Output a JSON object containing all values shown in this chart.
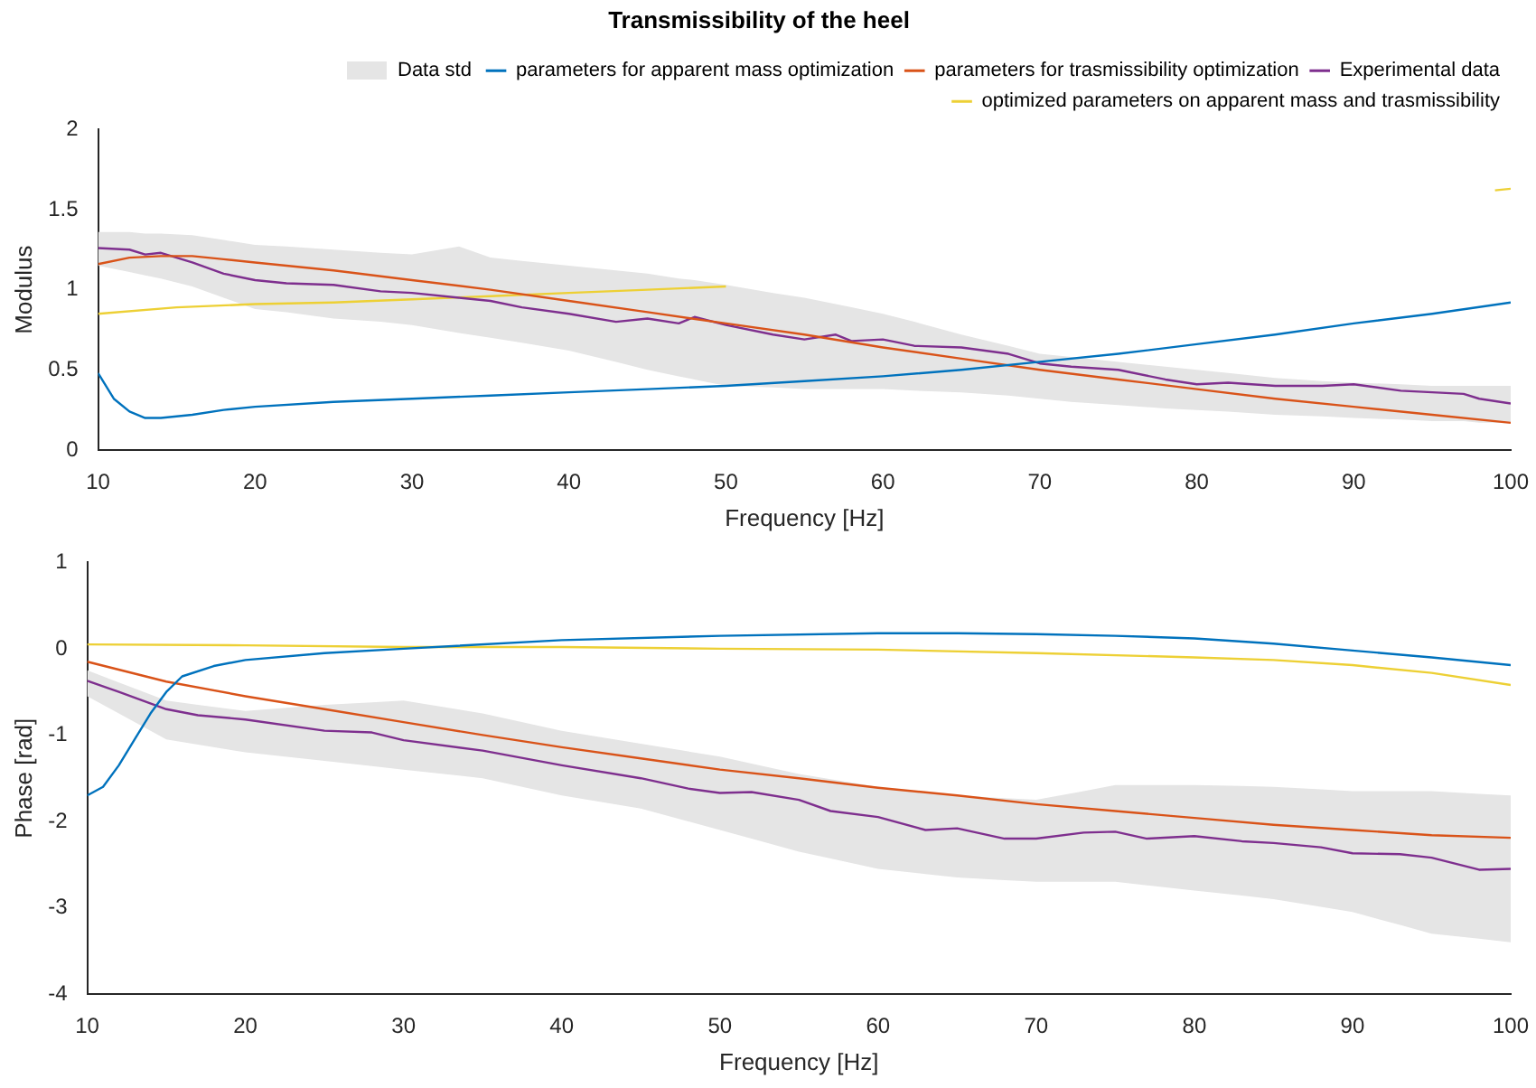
{
  "chart_data": [
    {
      "type": "line",
      "title": "Transmissibility of the heel",
      "xlabel": "Frequency [Hz]",
      "ylabel": "Modulus",
      "annotations": [
        "Data std"
      ],
      "xlim": [
        10,
        100
      ],
      "xticks": [
        10,
        20,
        30,
        40,
        50,
        60,
        70,
        80,
        90,
        100
      ],
      "ylim": [
        0,
        2
      ],
      "yticks": [
        0,
        0.5,
        1,
        1.5,
        2
      ],
      "grid": false,
      "legend": "top right",
      "marker": "none",
      "line_style": "solid",
      "series": [
        {
          "name": "parameters for apparent mass optimization",
          "color": "#0072bd",
          "x": [
            10,
            11,
            12,
            13,
            14,
            16,
            18,
            20,
            25,
            30,
            35,
            40,
            45,
            50,
            55,
            60,
            65,
            70,
            75,
            80,
            85,
            90,
            95,
            100
          ],
          "values": [
            0.48,
            0.32,
            0.24,
            0.2,
            0.2,
            0.22,
            0.25,
            0.27,
            0.3,
            0.32,
            0.34,
            0.36,
            0.38,
            0.4,
            0.43,
            0.46,
            0.5,
            0.55,
            0.6,
            0.66,
            0.72,
            0.79,
            0.85,
            0.92
          ]
        },
        {
          "name": "parameters for trasmissibility optimization",
          "color": "#d95319",
          "x": [
            10,
            12,
            14,
            16,
            18,
            20,
            25,
            30,
            35,
            40,
            45,
            50,
            55,
            60,
            65,
            70,
            75,
            80,
            85,
            90,
            95,
            100
          ],
          "values": [
            1.16,
            1.2,
            1.21,
            1.21,
            1.19,
            1.17,
            1.12,
            1.06,
            1.0,
            0.93,
            0.86,
            0.79,
            0.72,
            0.64,
            0.57,
            0.5,
            0.44,
            0.38,
            0.32,
            0.27,
            0.22,
            0.17
          ]
        },
        {
          "name": "Experimental data",
          "color": "#7e2f8e",
          "x": [
            10,
            12,
            13,
            14,
            16,
            18,
            20,
            22,
            25,
            28,
            30,
            33,
            35,
            37,
            40,
            43,
            45,
            47,
            48,
            50,
            53,
            55,
            57,
            58,
            60,
            62,
            65,
            68,
            70,
            72,
            75,
            78,
            80,
            82,
            85,
            88,
            90,
            93,
            95,
            97,
            98,
            100
          ],
          "values": [
            1.26,
            1.25,
            1.22,
            1.23,
            1.17,
            1.1,
            1.06,
            1.04,
            1.03,
            0.99,
            0.98,
            0.95,
            0.93,
            0.89,
            0.85,
            0.8,
            0.82,
            0.79,
            0.83,
            0.78,
            0.72,
            0.69,
            0.72,
            0.68,
            0.69,
            0.65,
            0.64,
            0.6,
            0.54,
            0.52,
            0.5,
            0.44,
            0.41,
            0.42,
            0.4,
            0.4,
            0.41,
            0.37,
            0.36,
            0.35,
            0.32,
            0.29
          ],
          "upper": [
            1.36,
            1.36,
            1.35,
            1.35,
            1.34,
            1.31,
            1.28,
            1.27,
            1.25,
            1.23,
            1.22,
            1.27,
            1.2,
            1.18,
            1.15,
            1.12,
            1.1,
            1.07,
            1.06,
            1.03,
            0.98,
            0.95,
            0.91,
            0.89,
            0.85,
            0.8,
            0.72,
            0.65,
            0.6,
            0.58,
            0.55,
            0.52,
            0.5,
            0.48,
            0.45,
            0.43,
            0.42,
            0.41,
            0.4,
            0.4,
            0.4,
            0.4
          ],
          "lower": [
            1.15,
            1.11,
            1.09,
            1.07,
            1.02,
            0.95,
            0.88,
            0.86,
            0.82,
            0.8,
            0.78,
            0.73,
            0.7,
            0.67,
            0.62,
            0.55,
            0.5,
            0.46,
            0.44,
            0.4,
            0.39,
            0.38,
            0.38,
            0.38,
            0.38,
            0.37,
            0.36,
            0.34,
            0.32,
            0.3,
            0.28,
            0.26,
            0.25,
            0.24,
            0.22,
            0.21,
            0.2,
            0.19,
            0.18,
            0.18,
            0.17,
            0.17
          ]
        },
        {
          "name": "optimized parameters on apparent mass and trasmissibility",
          "color": "#edd035",
          "x": [
            10,
            15,
            20,
            25,
            30,
            35,
            40,
            45,
            50,
            75,
            99,
            100
          ],
          "values": [
            0.85,
            0.89,
            0.91,
            0.92,
            0.94,
            0.96,
            0.98,
            1.0,
            1.02,
            null,
            1.62,
            1.63
          ]
        }
      ]
    },
    {
      "type": "line",
      "xlabel": "Frequency [Hz]",
      "ylabel": "Phase [rad]",
      "xlim": [
        10,
        100
      ],
      "xticks": [
        10,
        20,
        30,
        40,
        50,
        60,
        70,
        80,
        90,
        100
      ],
      "ylim": [
        -4,
        1
      ],
      "yticks": [
        -4,
        -3,
        -2,
        -1,
        0,
        1
      ],
      "grid": false,
      "marker": "none",
      "line_style": "solid",
      "series": [
        {
          "color": "#0072bd",
          "x": [
            10,
            11,
            12,
            13,
            14,
            15,
            16,
            18,
            20,
            25,
            30,
            40,
            50,
            60,
            65,
            70,
            75,
            80,
            85,
            90,
            95,
            100
          ],
          "values": [
            -1.7,
            -1.6,
            -1.35,
            -1.05,
            -0.75,
            -0.5,
            -0.32,
            -0.2,
            -0.13,
            -0.05,
            0.0,
            0.1,
            0.15,
            0.18,
            0.18,
            0.17,
            0.15,
            0.12,
            0.06,
            -0.02,
            -0.1,
            -0.19
          ]
        },
        {
          "color": "#d95319",
          "x": [
            10,
            15,
            20,
            25,
            30,
            35,
            40,
            45,
            50,
            55,
            60,
            65,
            70,
            75,
            80,
            85,
            90,
            95,
            100
          ],
          "values": [
            -0.15,
            -0.38,
            -0.55,
            -0.7,
            -0.85,
            -1.0,
            -1.14,
            -1.27,
            -1.4,
            -1.5,
            -1.61,
            -1.7,
            -1.8,
            -1.88,
            -1.96,
            -2.04,
            -2.1,
            -2.16,
            -2.19
          ]
        },
        {
          "color": "#7e2f8e",
          "x": [
            10,
            12,
            15,
            17,
            20,
            25,
            28,
            30,
            35,
            40,
            45,
            48,
            50,
            52,
            55,
            57,
            60,
            63,
            65,
            68,
            70,
            73,
            75,
            77,
            80,
            83,
            85,
            88,
            90,
            93,
            95,
            98,
            100
          ],
          "values": [
            -0.37,
            -0.5,
            -0.7,
            -0.77,
            -0.82,
            -0.95,
            -0.97,
            -1.06,
            -1.18,
            -1.35,
            -1.5,
            -1.62,
            -1.67,
            -1.66,
            -1.75,
            -1.88,
            -1.95,
            -2.1,
            -2.08,
            -2.2,
            -2.2,
            -2.13,
            -2.12,
            -2.2,
            -2.17,
            -2.23,
            -2.25,
            -2.3,
            -2.37,
            -2.38,
            -2.42,
            -2.56,
            -2.55
          ],
          "upper": [
            -0.25,
            -0.39,
            -0.6,
            -0.65,
            -0.72,
            -0.65,
            -0.62,
            -0.6,
            -0.75,
            -0.95,
            -1.1,
            -1.19,
            -1.25,
            -1.33,
            -1.45,
            -1.51,
            -1.6,
            -1.66,
            -1.7,
            -1.73,
            -1.75,
            -1.65,
            -1.58,
            -1.58,
            -1.58,
            -1.59,
            -1.6,
            -1.63,
            -1.65,
            -1.65,
            -1.65,
            -1.68,
            -1.7
          ],
          "lower": [
            -0.55,
            -0.75,
            -1.05,
            -1.11,
            -1.2,
            -1.3,
            -1.36,
            -1.4,
            -1.5,
            -1.7,
            -1.85,
            -2.0,
            -2.1,
            -2.2,
            -2.35,
            -2.43,
            -2.55,
            -2.61,
            -2.65,
            -2.68,
            -2.7,
            -2.7,
            -2.7,
            -2.74,
            -2.8,
            -2.86,
            -2.9,
            -2.99,
            -3.05,
            -3.2,
            -3.3,
            -3.36,
            -3.4
          ]
        },
        {
          "color": "#edd035",
          "x": [
            10,
            20,
            30,
            40,
            50,
            60,
            70,
            80,
            85,
            90,
            95,
            100
          ],
          "values": [
            0.05,
            0.04,
            0.02,
            0.02,
            0.0,
            -0.01,
            -0.05,
            -0.1,
            -0.13,
            -0.19,
            -0.28,
            -0.42
          ]
        }
      ]
    }
  ]
}
